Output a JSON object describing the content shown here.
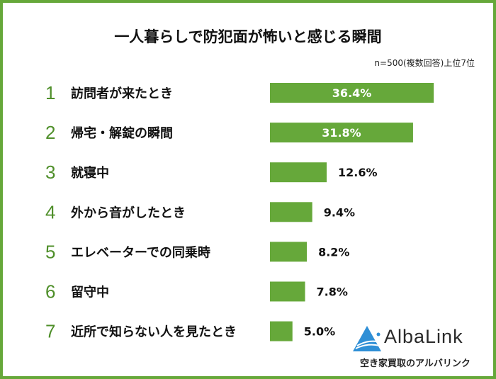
{
  "chart_data": {
    "type": "bar",
    "orientation": "horizontal",
    "title": "一人暮らしで防犯面が怖いと感じる瞬間",
    "subtitle": "n=500(複数回答)上位7位",
    "ranks": [
      "1",
      "2",
      "3",
      "4",
      "5",
      "6",
      "7"
    ],
    "categories": [
      "訪問者が来たとき",
      "帰宅・解錠の瞬間",
      "就寝中",
      "外から音がしたとき",
      "エレベーターでの同乗時",
      "留守中",
      "近所で知らない人を見たとき"
    ],
    "values": [
      36.4,
      31.8,
      12.6,
      9.4,
      8.2,
      7.8,
      5.0
    ],
    "labels": [
      "36.4%",
      "31.8%",
      "12.6%",
      "9.4%",
      "8.2%",
      "7.8%",
      "5.0%"
    ],
    "unit": "%",
    "bar_color": "#66a83a",
    "rank_color": "#4f8f2a",
    "grid": false
  },
  "logo": {
    "name": "AlbaLink",
    "tagline": "空き家買取のアルバリンク"
  }
}
